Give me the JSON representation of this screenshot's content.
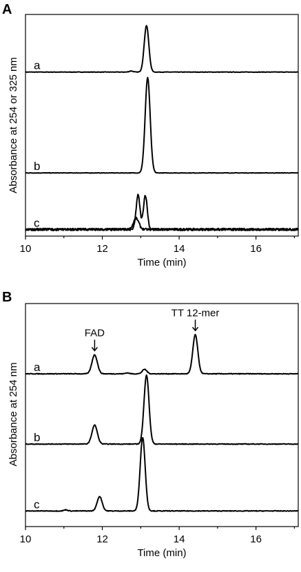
{
  "chart_data": [
    {
      "type": "line",
      "panel_label": "A",
      "xlabel": "Time (min)",
      "ylabel": "Absorbance at 254 or 325 nm",
      "xlim": [
        10,
        17.1
      ],
      "xticks": [
        10,
        12,
        14,
        16
      ],
      "ylim": [
        0,
        10
      ],
      "grid": false,
      "series": [
        {
          "label": "a",
          "baseline": 7.4,
          "noise": 0.01,
          "peaks": [
            {
              "x": 13.15,
              "h": 2.1,
              "w": 0.06
            },
            {
              "x": 12.75,
              "h": 0.05,
              "w": 0.05
            }
          ]
        },
        {
          "label": "b",
          "baseline": 2.85,
          "noise": 0.01,
          "peaks": [
            {
              "x": 13.18,
              "h": 4.3,
              "w": 0.065
            }
          ]
        },
        {
          "label": "c",
          "baseline": 0.3,
          "noise": 0.05,
          "peaks": [
            {
              "x": 12.93,
              "h": 1.55,
              "w": 0.05
            },
            {
              "x": 13.12,
              "h": 1.55,
              "w": 0.05
            }
          ]
        },
        {
          "label": "",
          "baseline": 0.3,
          "noise": 0.05,
          "peaks": [
            {
              "x": 12.88,
              "h": 0.5,
              "w": 0.07
            }
          ]
        }
      ]
    },
    {
      "type": "line",
      "panel_label": "B",
      "xlabel": "Time (min)",
      "ylabel": "Absorbance at 254 nm",
      "xlim": [
        10,
        17.1
      ],
      "xticks": [
        10,
        12,
        14,
        16
      ],
      "ylim": [
        0,
        10
      ],
      "grid": false,
      "series": [
        {
          "label": "a",
          "baseline": 6.85,
          "noise": 0.015,
          "peaks": [
            {
              "x": 11.8,
              "h": 0.85,
              "w": 0.07
            },
            {
              "x": 13.1,
              "h": 0.2,
              "w": 0.06
            },
            {
              "x": 14.42,
              "h": 1.75,
              "w": 0.065
            },
            {
              "x": 12.65,
              "h": 0.04,
              "w": 0.05
            }
          ]
        },
        {
          "label": "b",
          "baseline": 3.7,
          "noise": 0.015,
          "peaks": [
            {
              "x": 11.8,
              "h": 0.85,
              "w": 0.07
            },
            {
              "x": 13.15,
              "h": 3.1,
              "w": 0.065
            }
          ]
        },
        {
          "label": "c",
          "baseline": 0.7,
          "noise": 0.015,
          "peaks": [
            {
              "x": 11.93,
              "h": 0.65,
              "w": 0.065
            },
            {
              "x": 13.05,
              "h": 3.3,
              "w": 0.065
            },
            {
              "x": 11.05,
              "h": 0.05,
              "w": 0.05
            }
          ]
        }
      ],
      "annotations": [
        {
          "text": "FAD",
          "x": 11.8
        },
        {
          "text": "TT 12-mer",
          "x": 14.42
        }
      ]
    }
  ]
}
